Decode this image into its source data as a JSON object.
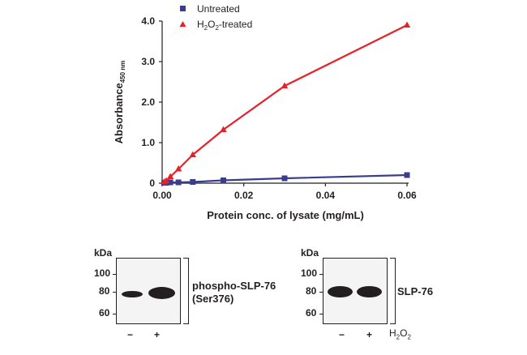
{
  "chart_data": {
    "type": "line",
    "xlabel": "Protein conc. of lysate (mg/mL)",
    "ylabel_main": "Absorbance",
    "ylabel_sub": "450 nm",
    "xlim": [
      0,
      0.06
    ],
    "ylim": [
      0,
      4.0
    ],
    "x_ticks": [
      "0.00",
      "0.02",
      "0.04",
      "0.06"
    ],
    "y_ticks": [
      "0",
      "1.0",
      "2.0",
      "3.0",
      "4.0"
    ],
    "legend_position": "top-left",
    "series": [
      {
        "name": "Untreated",
        "marker": "square",
        "color": "#3a3d8f",
        "points": [
          {
            "x": 0.0005,
            "y": 0.01
          },
          {
            "x": 0.001,
            "y": 0.01
          },
          {
            "x": 0.002,
            "y": 0.02
          },
          {
            "x": 0.004,
            "y": 0.02
          },
          {
            "x": 0.0075,
            "y": 0.03
          },
          {
            "x": 0.015,
            "y": 0.07
          },
          {
            "x": 0.03,
            "y": 0.12
          },
          {
            "x": 0.06,
            "y": 0.2
          }
        ]
      },
      {
        "name": "H2O2-treated",
        "name_parts": [
          "H",
          "2",
          "O",
          "2",
          "-treated"
        ],
        "marker": "triangle",
        "color": "#e8202a",
        "points": [
          {
            "x": 0.0005,
            "y": 0.03
          },
          {
            "x": 0.001,
            "y": 0.06
          },
          {
            "x": 0.002,
            "y": 0.16
          },
          {
            "x": 0.004,
            "y": 0.35
          },
          {
            "x": 0.0075,
            "y": 0.7
          },
          {
            "x": 0.015,
            "y": 1.32
          },
          {
            "x": 0.03,
            "y": 2.4
          },
          {
            "x": 0.06,
            "y": 3.9
          }
        ]
      }
    ]
  },
  "blots": {
    "kda_label": "kDa",
    "left": {
      "markers": [
        "100",
        "80",
        "60"
      ],
      "label_line1": "phospho-SLP-76",
      "label_line2": "(Ser376)",
      "lanes": [
        "−",
        "+"
      ],
      "band_intensity": [
        0.25,
        1.0
      ]
    },
    "right": {
      "markers": [
        "100",
        "80",
        "60"
      ],
      "label_line1": "SLP-76",
      "lanes": [
        "−",
        "+"
      ],
      "band_intensity": [
        1.0,
        1.0
      ],
      "treatment_parts": [
        "H",
        "2",
        "O",
        "2"
      ]
    }
  }
}
